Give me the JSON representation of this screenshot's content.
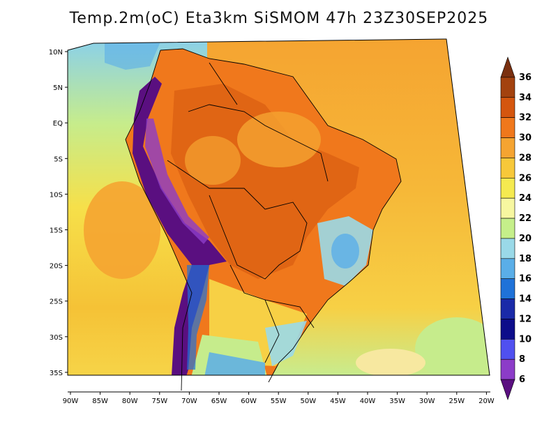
{
  "title": "Temp.2m(oC) Eta3km SiSMOM 47h 23Z30SEP2025",
  "map": {
    "lat_ticks": [
      "10N",
      "5N",
      "EQ",
      "5S",
      "10S",
      "15S",
      "20S",
      "25S",
      "30S",
      "35S"
    ],
    "lon_ticks": [
      "90W",
      "85W",
      "80W",
      "75W",
      "70W",
      "65W",
      "60W",
      "55W",
      "50W",
      "45W",
      "40W",
      "35W",
      "30W",
      "25W",
      "20W"
    ]
  },
  "colorbar": {
    "labels": [
      "36",
      "34",
      "32",
      "30",
      "28",
      "26",
      "24",
      "22",
      "20",
      "18",
      "16",
      "14",
      "12",
      "10",
      "8",
      "6"
    ],
    "colors": [
      "#7a3010",
      "#a3420f",
      "#d4560f",
      "#f0781c",
      "#f5a431",
      "#f7c83a",
      "#f5ea50",
      "#f7f7a0",
      "#c5ef8a",
      "#9ad9e8",
      "#5aaee8",
      "#1f72d8",
      "#1a2aa8",
      "#0d0d8a",
      "#5050f0",
      "#8c3cc8",
      "#5a0f80"
    ]
  },
  "colors": {
    "ocean_warm": "#f5c236",
    "ocean_hot": "#f5a431",
    "land_hot": "#e8701c",
    "andes_cold": "#5a0f80"
  }
}
